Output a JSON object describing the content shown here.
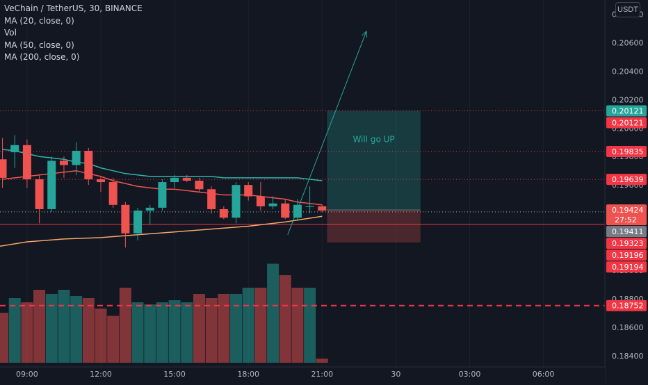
{
  "legend": {
    "symbol": "VeChain / TetherUS, 30, BINANCE",
    "ma20": "MA (20, close, 0)",
    "vol": "Vol",
    "ma50": "MA (50, close, 0)",
    "ma200": "MA (200, close, 0)"
  },
  "currency_button": "USDT",
  "annotation": "Will go UP",
  "colors": {
    "background": "#131722",
    "up": "#26a69a",
    "down": "#ef5350",
    "ma20": "#ef5350",
    "ma50": "#2fb5ab",
    "ma200": "#f7a66b",
    "hline": "#f23645",
    "grid": "#1e222d",
    "axis_text": "#b2b5be"
  },
  "chart_data": {
    "type": "candlestick",
    "symbol": "VeChain / TetherUS",
    "interval": "30",
    "exchange": "BINANCE",
    "grid": false,
    "y_range": [
      0.1836,
      0.209
    ],
    "y_ticks": [
      "0.18400",
      "0.18600",
      "0.18800",
      "0.19000",
      "0.19200",
      "0.19400",
      "0.19600",
      "0.19800",
      "0.20000",
      "0.20200",
      "0.20400",
      "0.20600",
      "0.20800"
    ],
    "x_ticks": [
      "09:00",
      "12:00",
      "15:00",
      "18:00",
      "21:00",
      "30",
      "03:00",
      "06:00"
    ],
    "x_tick_times": [
      9,
      12,
      15,
      18,
      21,
      24,
      27,
      30
    ],
    "x_range": [
      7.9,
      32.5
    ],
    "price_labels": [
      {
        "value": 0.20121,
        "text": "0.20121",
        "kind": "current",
        "color": "#26a69a"
      },
      {
        "value": 0.20121,
        "text": "0.20121",
        "kind": "line",
        "color": "#f23645"
      },
      {
        "value": 0.19835,
        "text": "0.19835",
        "kind": "line",
        "color": "#f23645"
      },
      {
        "value": 0.19639,
        "text": "0.19639",
        "kind": "line",
        "color": "#f23645"
      },
      {
        "value": 0.19424,
        "text": "0.19424",
        "sub": "27:52",
        "kind": "last",
        "color": "#ef5350"
      },
      {
        "value": 0.19411,
        "text": "0.19411",
        "kind": "ma",
        "color": "#b2b5be"
      },
      {
        "value": 0.19323,
        "text": "0.19323",
        "kind": "line",
        "color": "#f23645"
      },
      {
        "value": 0.19196,
        "text": "0.19196",
        "kind": "line",
        "color": "#f23645"
      },
      {
        "value": 0.19194,
        "text": "0.19194",
        "kind": "line",
        "color": "#f23645"
      },
      {
        "value": 0.18752,
        "text": "0.18752",
        "kind": "line",
        "color": "#f23645"
      }
    ],
    "horizontal_lines": [
      {
        "value": 0.20121,
        "style": "dotted"
      },
      {
        "value": 0.19835,
        "style": "dotted"
      },
      {
        "value": 0.19639,
        "style": "dotted"
      },
      {
        "value": 0.19411,
        "style": "dotted"
      },
      {
        "value": 0.19323,
        "style": "solid"
      },
      {
        "value": 0.18752,
        "style": "dashed"
      }
    ],
    "candles": [
      {
        "t": 8.0,
        "o": 0.1978,
        "h": 0.1993,
        "l": 0.1958,
        "c": 0.1965
      },
      {
        "t": 8.5,
        "o": 0.1983,
        "h": 0.1995,
        "l": 0.1972,
        "c": 0.1988
      },
      {
        "t": 9.0,
        "o": 0.1988,
        "h": 0.1992,
        "l": 0.1958,
        "c": 0.1964
      },
      {
        "t": 9.5,
        "o": 0.1964,
        "h": 0.1967,
        "l": 0.1933,
        "c": 0.1943
      },
      {
        "t": 10.0,
        "o": 0.1943,
        "h": 0.198,
        "l": 0.1941,
        "c": 0.1977
      },
      {
        "t": 10.5,
        "o": 0.1977,
        "h": 0.198,
        "l": 0.1965,
        "c": 0.1974
      },
      {
        "t": 11.0,
        "o": 0.1974,
        "h": 0.199,
        "l": 0.1967,
        "c": 0.1984
      },
      {
        "t": 11.5,
        "o": 0.1984,
        "h": 0.1986,
        "l": 0.196,
        "c": 0.1964
      },
      {
        "t": 12.0,
        "o": 0.1964,
        "h": 0.1966,
        "l": 0.1955,
        "c": 0.1962
      },
      {
        "t": 12.5,
        "o": 0.1962,
        "h": 0.1965,
        "l": 0.1944,
        "c": 0.1946
      },
      {
        "t": 13.0,
        "o": 0.1946,
        "h": 0.1948,
        "l": 0.1916,
        "c": 0.1926
      },
      {
        "t": 13.5,
        "o": 0.1926,
        "h": 0.1944,
        "l": 0.1921,
        "c": 0.1942
      },
      {
        "t": 14.0,
        "o": 0.1942,
        "h": 0.1946,
        "l": 0.1932,
        "c": 0.1944
      },
      {
        "t": 14.5,
        "o": 0.1944,
        "h": 0.1964,
        "l": 0.1942,
        "c": 0.1962
      },
      {
        "t": 15.0,
        "o": 0.1962,
        "h": 0.1967,
        "l": 0.1958,
        "c": 0.1965
      },
      {
        "t": 15.5,
        "o": 0.1965,
        "h": 0.1967,
        "l": 0.1962,
        "c": 0.1963
      },
      {
        "t": 16.0,
        "o": 0.1963,
        "h": 0.1965,
        "l": 0.1955,
        "c": 0.1957
      },
      {
        "t": 16.5,
        "o": 0.1957,
        "h": 0.1959,
        "l": 0.194,
        "c": 0.1943
      },
      {
        "t": 17.0,
        "o": 0.1943,
        "h": 0.1945,
        "l": 0.1936,
        "c": 0.1937
      },
      {
        "t": 17.5,
        "o": 0.1937,
        "h": 0.1962,
        "l": 0.1933,
        "c": 0.196
      },
      {
        "t": 18.0,
        "o": 0.196,
        "h": 0.1962,
        "l": 0.1949,
        "c": 0.1952
      },
      {
        "t": 18.5,
        "o": 0.1952,
        "h": 0.1962,
        "l": 0.1942,
        "c": 0.1945
      },
      {
        "t": 19.0,
        "o": 0.1945,
        "h": 0.1952,
        "l": 0.1943,
        "c": 0.1947
      },
      {
        "t": 19.5,
        "o": 0.1947,
        "h": 0.195,
        "l": 0.1936,
        "c": 0.1937
      },
      {
        "t": 20.0,
        "o": 0.1937,
        "h": 0.195,
        "l": 0.1935,
        "c": 0.1946
      },
      {
        "t": 20.5,
        "o": 0.1945,
        "h": 0.1959,
        "l": 0.194,
        "c": 0.1945
      },
      {
        "t": 21.0,
        "o": 0.1945,
        "h": 0.1946,
        "l": 0.1941,
        "c": 0.1942
      }
    ],
    "volume": {
      "axis_max": 100,
      "values": [
        {
          "t": 8.0,
          "v": 48,
          "up": false
        },
        {
          "t": 8.5,
          "v": 62,
          "up": true
        },
        {
          "t": 9.0,
          "v": 58,
          "up": false
        },
        {
          "t": 9.5,
          "v": 70,
          "up": false
        },
        {
          "t": 10.0,
          "v": 66,
          "up": true
        },
        {
          "t": 10.5,
          "v": 70,
          "up": true
        },
        {
          "t": 11.0,
          "v": 64,
          "up": true
        },
        {
          "t": 11.5,
          "v": 62,
          "up": false
        },
        {
          "t": 12.0,
          "v": 52,
          "up": false
        },
        {
          "t": 12.5,
          "v": 45,
          "up": false
        },
        {
          "t": 13.0,
          "v": 72,
          "up": false
        },
        {
          "t": 13.5,
          "v": 58,
          "up": true
        },
        {
          "t": 14.0,
          "v": 56,
          "up": true
        },
        {
          "t": 14.5,
          "v": 58,
          "up": true
        },
        {
          "t": 15.0,
          "v": 60,
          "up": true
        },
        {
          "t": 15.5,
          "v": 58,
          "up": true
        },
        {
          "t": 16.0,
          "v": 66,
          "up": false
        },
        {
          "t": 16.5,
          "v": 62,
          "up": false
        },
        {
          "t": 17.0,
          "v": 66,
          "up": false
        },
        {
          "t": 17.5,
          "v": 66,
          "up": true
        },
        {
          "t": 18.0,
          "v": 72,
          "up": true
        },
        {
          "t": 18.5,
          "v": 72,
          "up": false
        },
        {
          "t": 19.0,
          "v": 95,
          "up": true
        },
        {
          "t": 19.5,
          "v": 84,
          "up": false
        },
        {
          "t": 20.0,
          "v": 72,
          "up": false
        },
        {
          "t": 20.5,
          "v": 72,
          "up": true
        },
        {
          "t": 21.0,
          "v": 4,
          "up": false
        }
      ]
    },
    "ma20": [
      [
        8.0,
        0.1964
      ],
      [
        8.5,
        0.1965
      ],
      [
        9.0,
        0.1966
      ],
      [
        9.5,
        0.1967
      ],
      [
        10.0,
        0.1968
      ],
      [
        10.5,
        0.1969
      ],
      [
        11.0,
        0.197
      ],
      [
        11.5,
        0.1968
      ],
      [
        12.0,
        0.1966
      ],
      [
        12.5,
        0.1963
      ],
      [
        13.0,
        0.1961
      ],
      [
        13.5,
        0.1959
      ],
      [
        14.0,
        0.1958
      ],
      [
        14.5,
        0.1957
      ],
      [
        15.0,
        0.1957
      ],
      [
        15.5,
        0.1956
      ],
      [
        16.0,
        0.1955
      ],
      [
        16.5,
        0.1954
      ],
      [
        17.0,
        0.1953
      ],
      [
        17.5,
        0.1953
      ],
      [
        18.0,
        0.1953
      ],
      [
        18.5,
        0.1952
      ],
      [
        19.0,
        0.1951
      ],
      [
        19.5,
        0.195
      ],
      [
        20.0,
        0.1948
      ],
      [
        20.5,
        0.1947
      ],
      [
        21.0,
        0.1946
      ]
    ],
    "ma50": [
      [
        8.0,
        0.1985
      ],
      [
        8.5,
        0.1984
      ],
      [
        9.0,
        0.1982
      ],
      [
        9.5,
        0.198
      ],
      [
        10.0,
        0.1979
      ],
      [
        10.5,
        0.1978
      ],
      [
        11.0,
        0.1976
      ],
      [
        11.5,
        0.1975
      ],
      [
        12.0,
        0.1972
      ],
      [
        12.5,
        0.197
      ],
      [
        13.0,
        0.1968
      ],
      [
        13.5,
        0.1967
      ],
      [
        14.0,
        0.1966
      ],
      [
        14.5,
        0.1966
      ],
      [
        15.0,
        0.1966
      ],
      [
        15.5,
        0.1966
      ],
      [
        16.0,
        0.1966
      ],
      [
        16.5,
        0.1966
      ],
      [
        17.0,
        0.1965
      ],
      [
        17.5,
        0.1965
      ],
      [
        18.0,
        0.1965
      ],
      [
        18.5,
        0.1965
      ],
      [
        19.0,
        0.1965
      ],
      [
        19.5,
        0.1965
      ],
      [
        20.0,
        0.1965
      ],
      [
        20.5,
        0.1964
      ],
      [
        21.0,
        0.1963
      ]
    ],
    "ma200": [
      [
        7.9,
        0.1917
      ],
      [
        9.0,
        0.192
      ],
      [
        10.5,
        0.1922
      ],
      [
        12.0,
        0.1923
      ],
      [
        13.5,
        0.1925
      ],
      [
        15.0,
        0.1927
      ],
      [
        16.5,
        0.1929
      ],
      [
        18.0,
        0.1931
      ],
      [
        19.5,
        0.1934
      ],
      [
        21.0,
        0.1938
      ]
    ],
    "position": {
      "t_start": 21.2,
      "t_end": 25.0,
      "entry": 0.19424,
      "target": 0.20121,
      "stop": 0.19196,
      "label": "Will go UP"
    },
    "arrow": {
      "from": [
        19.6,
        0.1925
      ],
      "to": [
        22.8,
        0.2068
      ]
    }
  }
}
